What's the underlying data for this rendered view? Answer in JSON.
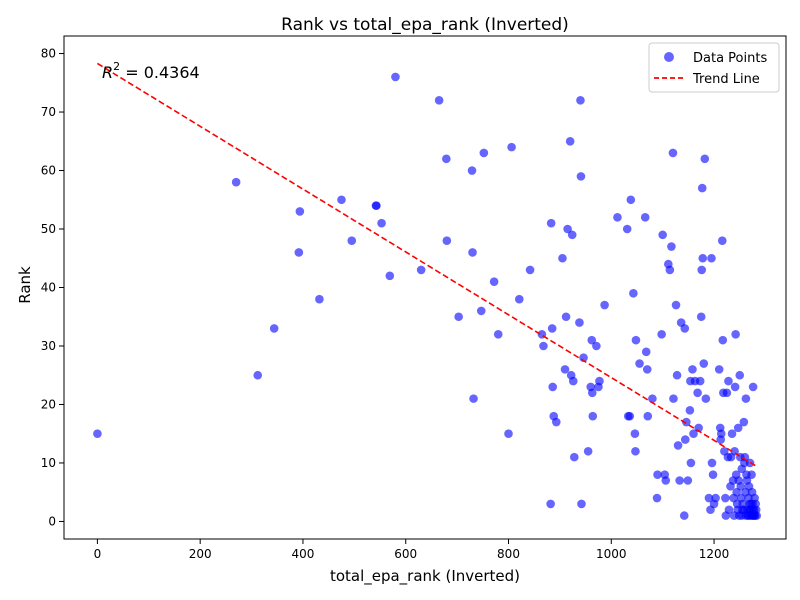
{
  "chart_data": {
    "type": "scatter",
    "title": "Rank vs total_epa_rank (Inverted)",
    "xlabel": "total_epa_rank (Inverted)",
    "ylabel": "Rank",
    "xlim": [
      -65,
      1340
    ],
    "ylim": [
      -3,
      83
    ],
    "xticks": [
      0,
      200,
      400,
      600,
      800,
      1000,
      1200
    ],
    "yticks": [
      0,
      10,
      20,
      30,
      40,
      50,
      60,
      70,
      80
    ],
    "annotation": "R² = 0.4364",
    "annotation_parts": {
      "base": "R",
      "sup": "2",
      "rest": " = 0.4364"
    },
    "legend_position": "top-right",
    "colors": {
      "points": "#0000ff",
      "trend": "#ff0000"
    },
    "series": [
      {
        "name": "Data Points",
        "type": "scatter",
        "points": [
          [
            0,
            15
          ],
          [
            270,
            58
          ],
          [
            312,
            25
          ],
          [
            344,
            33
          ],
          [
            392,
            46
          ],
          [
            394,
            53
          ],
          [
            432,
            38
          ],
          [
            475,
            55
          ],
          [
            495,
            48
          ],
          [
            542,
            54
          ],
          [
            543,
            54
          ],
          [
            553,
            51
          ],
          [
            569,
            42
          ],
          [
            580,
            76
          ],
          [
            630,
            43
          ],
          [
            665,
            72
          ],
          [
            679,
            62
          ],
          [
            680,
            48
          ],
          [
            703,
            35
          ],
          [
            729,
            60
          ],
          [
            730,
            46
          ],
          [
            732,
            21
          ],
          [
            747,
            36
          ],
          [
            752,
            63
          ],
          [
            772,
            41
          ],
          [
            780,
            32
          ],
          [
            800,
            15
          ],
          [
            806,
            64
          ],
          [
            821,
            38
          ],
          [
            842,
            43
          ],
          [
            865,
            32
          ],
          [
            868,
            30
          ],
          [
            882,
            3
          ],
          [
            883,
            51
          ],
          [
            885,
            33
          ],
          [
            886,
            23
          ],
          [
            888,
            18
          ],
          [
            893,
            17
          ],
          [
            905,
            45
          ],
          [
            910,
            26
          ],
          [
            912,
            35
          ],
          [
            915,
            50
          ],
          [
            920,
            65
          ],
          [
            922,
            25
          ],
          [
            924,
            49
          ],
          [
            926,
            24
          ],
          [
            928,
            11
          ],
          [
            938,
            34
          ],
          [
            940,
            72
          ],
          [
            941,
            59
          ],
          [
            942,
            3
          ],
          [
            946,
            28
          ],
          [
            955,
            12
          ],
          [
            960,
            23
          ],
          [
            962,
            31
          ],
          [
            963,
            22
          ],
          [
            964,
            18
          ],
          [
            971,
            30
          ],
          [
            975,
            23
          ],
          [
            977,
            24
          ],
          [
            987,
            37
          ],
          [
            1012,
            52
          ],
          [
            1031,
            50
          ],
          [
            1033,
            18
          ],
          [
            1036,
            18
          ],
          [
            1038,
            55
          ],
          [
            1043,
            39
          ],
          [
            1046,
            15
          ],
          [
            1047,
            12
          ],
          [
            1048,
            31
          ],
          [
            1055,
            27
          ],
          [
            1066,
            52
          ],
          [
            1068,
            29
          ],
          [
            1070,
            26
          ],
          [
            1071,
            18
          ],
          [
            1080,
            21
          ],
          [
            1089,
            4
          ],
          [
            1090,
            8
          ],
          [
            1098,
            32
          ],
          [
            1100,
            49
          ],
          [
            1104,
            8
          ],
          [
            1106,
            7
          ],
          [
            1111,
            44
          ],
          [
            1114,
            43
          ],
          [
            1117,
            47
          ],
          [
            1120,
            63
          ],
          [
            1121,
            21
          ],
          [
            1126,
            37
          ],
          [
            1128,
            25
          ],
          [
            1130,
            13
          ],
          [
            1133,
            7
          ],
          [
            1136,
            34
          ],
          [
            1142,
            1
          ],
          [
            1143,
            33
          ],
          [
            1144,
            14
          ],
          [
            1146,
            17
          ],
          [
            1149,
            7
          ],
          [
            1153,
            19
          ],
          [
            1154,
            24
          ],
          [
            1155,
            10
          ],
          [
            1158,
            26
          ],
          [
            1160,
            15
          ],
          [
            1163,
            24
          ],
          [
            1168,
            22
          ],
          [
            1170,
            16
          ],
          [
            1173,
            24
          ],
          [
            1175,
            35
          ],
          [
            1176,
            43
          ],
          [
            1177,
            57
          ],
          [
            1178,
            45
          ],
          [
            1180,
            27
          ],
          [
            1182,
            62
          ],
          [
            1184,
            21
          ],
          [
            1190,
            4
          ],
          [
            1193,
            2
          ],
          [
            1195,
            45
          ],
          [
            1196,
            10
          ],
          [
            1198,
            8
          ],
          [
            1200,
            3
          ],
          [
            1203,
            4
          ],
          [
            1210,
            26
          ],
          [
            1212,
            16
          ],
          [
            1213,
            14
          ],
          [
            1214,
            15
          ],
          [
            1216,
            48
          ],
          [
            1217,
            31
          ],
          [
            1218,
            22
          ],
          [
            1220,
            12
          ],
          [
            1222,
            4
          ],
          [
            1223,
            1
          ],
          [
            1225,
            22
          ],
          [
            1227,
            11
          ],
          [
            1228,
            24
          ],
          [
            1229,
            2
          ],
          [
            1232,
            6
          ],
          [
            1233,
            11
          ],
          [
            1235,
            15
          ],
          [
            1237,
            7
          ],
          [
            1238,
            4
          ],
          [
            1239,
            1
          ],
          [
            1240,
            12
          ],
          [
            1241,
            23
          ],
          [
            1242,
            32
          ],
          [
            1243,
            8
          ],
          [
            1244,
            5
          ],
          [
            1245,
            3
          ],
          [
            1246,
            2
          ],
          [
            1247,
            16
          ],
          [
            1248,
            7
          ],
          [
            1249,
            1
          ],
          [
            1250,
            25
          ],
          [
            1251,
            11
          ],
          [
            1252,
            6
          ],
          [
            1253,
            4
          ],
          [
            1254,
            9
          ],
          [
            1255,
            2
          ],
          [
            1256,
            3
          ],
          [
            1258,
            17
          ],
          [
            1259,
            10
          ],
          [
            1260,
            11
          ],
          [
            1261,
            5
          ],
          [
            1262,
            21
          ],
          [
            1263,
            8
          ],
          [
            1264,
            7
          ],
          [
            1265,
            2
          ],
          [
            1266,
            1
          ],
          [
            1267,
            4
          ],
          [
            1268,
            6
          ],
          [
            1269,
            3
          ],
          [
            1270,
            10
          ],
          [
            1271,
            2
          ],
          [
            1272,
            1
          ],
          [
            1273,
            8
          ],
          [
            1274,
            5
          ],
          [
            1275,
            3
          ],
          [
            1276,
            23
          ],
          [
            1277,
            1
          ],
          [
            1278,
            2
          ],
          [
            1279,
            4
          ],
          [
            1280,
            1
          ],
          [
            1281,
            3
          ],
          [
            1282,
            2
          ],
          [
            1283,
            1
          ],
          [
            1278,
            1
          ],
          [
            1276,
            2
          ],
          [
            1274,
            1
          ],
          [
            1272,
            3
          ],
          [
            1270,
            2
          ],
          [
            1268,
            1
          ],
          [
            1262,
            1
          ],
          [
            1258,
            2
          ],
          [
            1254,
            1
          ]
        ]
      },
      {
        "name": "Trend Line",
        "type": "line",
        "style": "dashed",
        "x": [
          0,
          1283
        ],
        "y": [
          78.3,
          9.4
        ]
      }
    ]
  }
}
